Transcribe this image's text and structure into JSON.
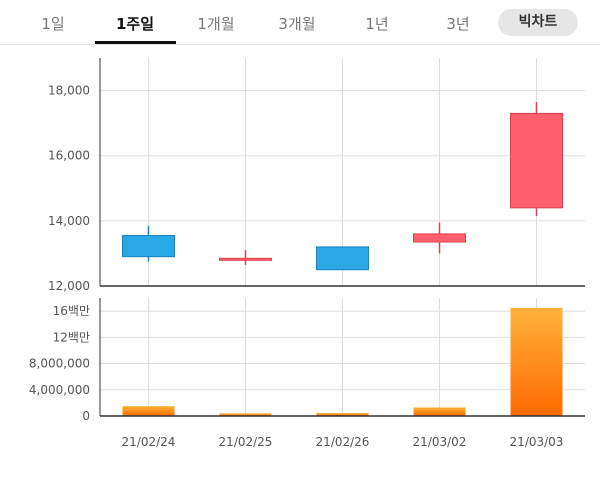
{
  "tabs": [
    {
      "label": "1일",
      "active": false
    },
    {
      "label": "1주일",
      "active": true
    },
    {
      "label": "1개월",
      "active": false
    },
    {
      "label": "3개월",
      "active": false
    },
    {
      "label": "1년",
      "active": false
    },
    {
      "label": "3년",
      "active": false
    }
  ],
  "bitchart_button": "빅차트",
  "colors": {
    "up": "#ff5f6d",
    "down": "#29a8e6",
    "volume_top": "#ffb23a",
    "volume_bottom": "#ff6a00",
    "grid": "#dddddd",
    "axis": "#333333"
  },
  "chart_data": [
    {
      "type": "candlestick",
      "title": "",
      "categories": [
        "21/02/24",
        "21/02/25",
        "21/02/26",
        "21/03/02",
        "21/03/03"
      ],
      "open": [
        13550,
        12800,
        13200,
        13350,
        14400
      ],
      "close": [
        12900,
        12850,
        12500,
        13600,
        17300
      ],
      "high": [
        13850,
        13100,
        13200,
        13950,
        17650
      ],
      "low": [
        12750,
        12650,
        12500,
        13000,
        14150
      ],
      "ylim": [
        12000,
        19000
      ],
      "yticks": [
        12000,
        14000,
        16000,
        18000
      ],
      "ytick_labels": [
        "12,000",
        "14,000",
        "16,000",
        "18,000"
      ],
      "grid": true
    },
    {
      "type": "bar",
      "title": "",
      "categories": [
        "21/02/24",
        "21/02/25",
        "21/02/26",
        "21/03/02",
        "21/03/03"
      ],
      "values": [
        1500000,
        400000,
        450000,
        1300000,
        16500000
      ],
      "ylim": [
        0,
        18000000
      ],
      "yticks": [
        0,
        4000000,
        8000000,
        12000000,
        16000000
      ],
      "ytick_labels": [
        "0",
        "4,000,000",
        "8,000,000",
        "12백만",
        "16백만"
      ],
      "grid": true
    }
  ]
}
